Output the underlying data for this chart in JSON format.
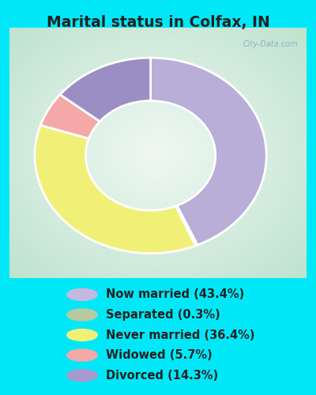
{
  "title": "Marital status in Colfax, IN",
  "slices": [
    43.4,
    0.3,
    36.4,
    5.7,
    14.3
  ],
  "labels": [
    "Now married (43.4%)",
    "Separated (0.3%)",
    "Never married (36.4%)",
    "Widowed (5.7%)",
    "Divorced (14.3%)"
  ],
  "colors": [
    "#b8aed8",
    "#aec9a0",
    "#f0f077",
    "#f5a8a8",
    "#9b8ec4"
  ],
  "legend_colors": [
    "#c4b8e0",
    "#b8c9a0",
    "#f0f077",
    "#f5a8a8",
    "#a898d0"
  ],
  "bg_cyan": "#00e8f8",
  "bg_chart_corner": "#b8e0c8",
  "bg_chart_center": "#e8f5ee",
  "title_color": "#222222",
  "title_fontsize": 13.5,
  "legend_fontsize": 10.5,
  "startangle": 90,
  "watermark": "City-Data.com",
  "watermark_color": "#88aacc"
}
